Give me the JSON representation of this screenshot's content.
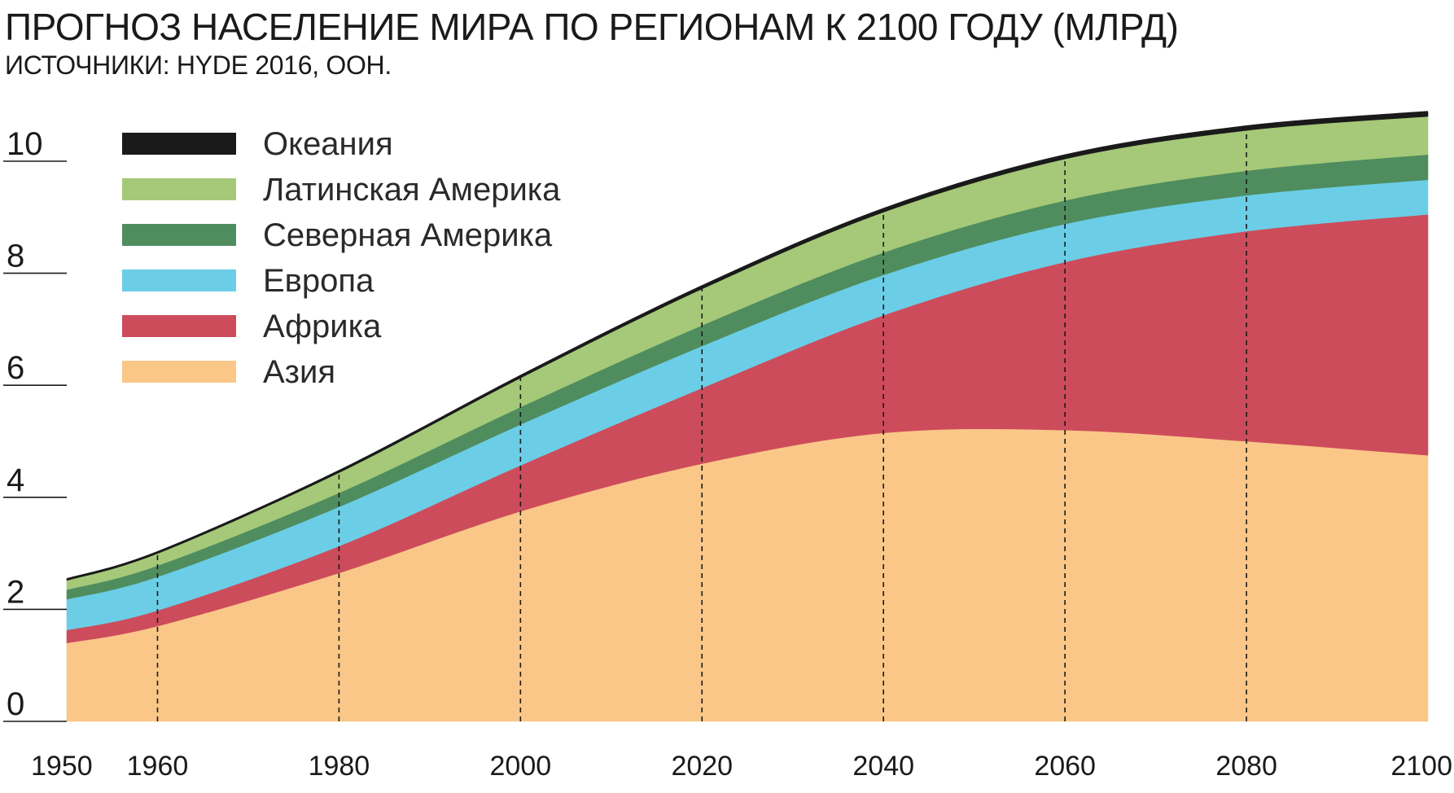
{
  "chart_data": {
    "type": "area",
    "stacked": true,
    "title": "ПРОГНОЗ НАСЕЛЕНИЕ МИРА ПО РЕГИОНАМ К 2100 ГОДУ (МЛРД)",
    "subtitle": "ИСТОЧНИКИ: HYDE 2016, ООН.",
    "xlabel": "",
    "ylabel": "",
    "x": [
      1950,
      1960,
      1980,
      2000,
      2020,
      2040,
      2060,
      2080,
      2100
    ],
    "x_ticks": [
      1950,
      1960,
      1980,
      2000,
      2020,
      2040,
      2060,
      2080,
      2100
    ],
    "y_ticks": [
      0,
      2,
      4,
      6,
      8,
      10
    ],
    "xlim": [
      1950,
      2100
    ],
    "ylim": [
      0,
      11
    ],
    "reference_lines": [
      1960,
      1980,
      2000,
      2020,
      2040,
      2060,
      2080
    ],
    "legend_position": "top-left",
    "series": [
      {
        "name": "Азия",
        "color": "#fac788",
        "values": [
          1.4,
          1.7,
          2.65,
          3.75,
          4.6,
          5.15,
          5.2,
          5.0,
          4.75
        ]
      },
      {
        "name": "Африка",
        "color": "#cd4c5b",
        "values": [
          0.23,
          0.28,
          0.48,
          0.82,
          1.35,
          2.1,
          3.0,
          3.75,
          4.3
        ]
      },
      {
        "name": "Европа",
        "color": "#6ccde6",
        "values": [
          0.55,
          0.6,
          0.7,
          0.73,
          0.75,
          0.72,
          0.68,
          0.64,
          0.62
        ]
      },
      {
        "name": "Северная Америка",
        "color": "#4f8d5f",
        "values": [
          0.17,
          0.2,
          0.25,
          0.31,
          0.37,
          0.4,
          0.42,
          0.44,
          0.45
        ]
      },
      {
        "name": "Латинская Америка",
        "color": "#a5c978",
        "values": [
          0.17,
          0.22,
          0.36,
          0.52,
          0.65,
          0.72,
          0.74,
          0.72,
          0.68
        ]
      },
      {
        "name": "Океания",
        "color": "#1a1a1a",
        "values": [
          0.013,
          0.016,
          0.023,
          0.031,
          0.043,
          0.053,
          0.06,
          0.068,
          0.075
        ]
      }
    ],
    "legend": [
      "Океания",
      "Латинская Америка",
      "Северная Америка",
      "Европа",
      "Африка",
      "Азия"
    ]
  }
}
